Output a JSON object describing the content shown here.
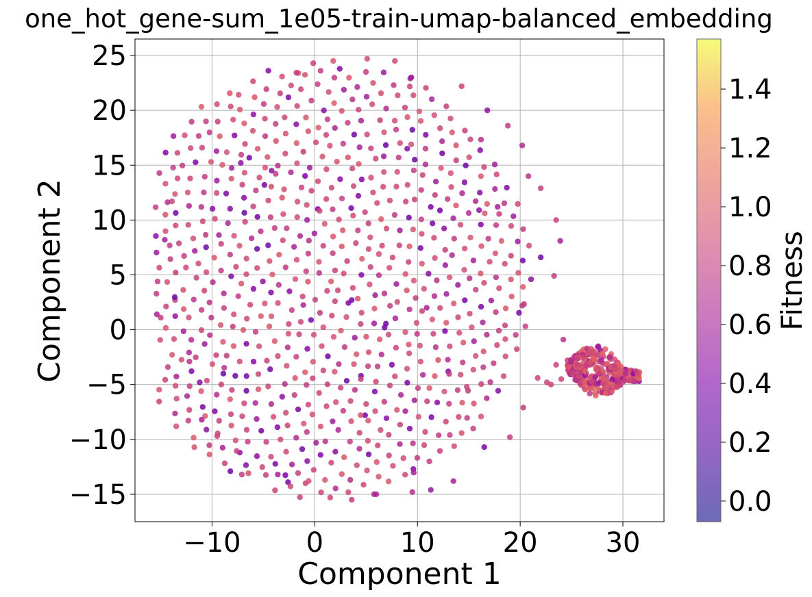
{
  "chart_data": {
    "type": "scatter",
    "title": "one_hot_gene-sum_1e05-train-umap-balanced_embedding",
    "xlabel": "Component 1",
    "ylabel": "Component 2",
    "xlim": [
      -17.5,
      34
    ],
    "ylim": [
      -17.5,
      26.5
    ],
    "xticks": [
      -10,
      0,
      10,
      20,
      30
    ],
    "xtick_labels": [
      "−10",
      "0",
      "10",
      "20",
      "30"
    ],
    "yticks": [
      -15,
      -10,
      -5,
      0,
      5,
      10,
      15,
      20,
      25
    ],
    "ytick_labels": [
      "−15",
      "−10",
      "−5",
      "0",
      "5",
      "10",
      "15",
      "20",
      "25"
    ],
    "grid": true,
    "colorbar": {
      "label": "Fitness",
      "range": [
        -0.07,
        1.57
      ],
      "ticks": [
        0.0,
        0.2,
        0.4,
        0.6,
        0.8,
        1.0,
        1.2,
        1.4
      ],
      "tick_labels": [
        "0.0",
        "0.2",
        "0.4",
        "0.6",
        "0.8",
        "1.0",
        "1.2",
        "1.4"
      ],
      "colormap": "plasma",
      "alpha": 0.6
    },
    "points": [
      {
        "x": 5.1,
        "y": 24.7,
        "c": 0.9
      },
      {
        "x": 1.8,
        "y": 24.5,
        "c": 0.95
      },
      {
        "x": 7.8,
        "y": 24.5,
        "c": 0.9
      },
      {
        "x": -1.6,
        "y": 23.4,
        "c": 0.95
      },
      {
        "x": 9.4,
        "y": 23.0,
        "c": 0.5
      },
      {
        "x": 14.3,
        "y": 22.2,
        "c": 0.85
      },
      {
        "x": 16.8,
        "y": 20.0,
        "c": 0.5
      },
      {
        "x": 18.8,
        "y": 18.6,
        "c": 0.8
      },
      {
        "x": 20.2,
        "y": 16.8,
        "c": 0.7
      },
      {
        "x": 20.8,
        "y": 14.0,
        "c": 0.75
      },
      {
        "x": 22.0,
        "y": 12.9,
        "c": 0.8
      },
      {
        "x": 23.5,
        "y": 10.0,
        "c": 0.85
      },
      {
        "x": 23.9,
        "y": 8.1,
        "c": 0.6
      },
      {
        "x": 23.3,
        "y": 4.9,
        "c": 0.8
      },
      {
        "x": 22.0,
        "y": 6.6,
        "c": 0.3
      },
      {
        "x": 20.2,
        "y": 2.2,
        "c": 0.75
      },
      {
        "x": 24.2,
        "y": -0.9,
        "c": 0.75
      },
      {
        "x": -15.3,
        "y": 4.4,
        "c": 0.8
      },
      {
        "x": -15.0,
        "y": 1.1,
        "c": 0.8
      },
      {
        "x": -14.6,
        "y": 8.2,
        "c": 0.6
      },
      {
        "x": -13.9,
        "y": 11.7,
        "c": 0.85
      },
      {
        "x": -13.6,
        "y": 2.7,
        "c": 0.8
      },
      {
        "x": -12.2,
        "y": -2.9,
        "c": 0.75
      },
      {
        "x": -11.2,
        "y": -4.8,
        "c": 0.45
      },
      {
        "x": -11.0,
        "y": -8.2,
        "c": 0.6
      },
      {
        "x": -9.5,
        "y": -9.7,
        "c": 0.85
      },
      {
        "x": -7.3,
        "y": -11.2,
        "c": 0.5
      },
      {
        "x": -7.1,
        "y": -13.2,
        "c": 0.8
      },
      {
        "x": -3.6,
        "y": -13.2,
        "c": 0.6
      },
      {
        "x": -2.6,
        "y": -13.9,
        "c": 0.4
      },
      {
        "x": -0.9,
        "y": -14.0,
        "c": 0.85
      },
      {
        "x": 1.5,
        "y": -15.3,
        "c": 0.85
      },
      {
        "x": 3.6,
        "y": -15.5,
        "c": 0.8
      },
      {
        "x": 6.0,
        "y": -15.0,
        "c": 0.7
      },
      {
        "x": 9.5,
        "y": -14.8,
        "c": 0.7
      },
      {
        "x": 11.3,
        "y": -14.6,
        "c": 0.55
      },
      {
        "x": 13.5,
        "y": -13.8,
        "c": 0.6
      },
      {
        "x": 16.5,
        "y": -10.7,
        "c": 0.4
      },
      {
        "x": 19.0,
        "y": -9.8,
        "c": 0.8
      },
      {
        "x": 20.3,
        "y": -7.1,
        "c": 0.8
      },
      {
        "x": -8.9,
        "y": -4.0,
        "c": 0.3
      },
      {
        "x": 4.5,
        "y": -4.2,
        "c": 0.4
      },
      {
        "x": 4.9,
        "y": -7.8,
        "c": 0.35
      },
      {
        "x": 14.8,
        "y": -5.2,
        "c": 0.85
      },
      {
        "x": 13.0,
        "y": -3.8,
        "c": 0.45
      },
      {
        "x": 9.6,
        "y": -12.7,
        "c": 0.45
      },
      {
        "x": -7.2,
        "y": 15.2,
        "c": 0.5
      },
      {
        "x": -4.2,
        "y": 14.5,
        "c": 0.5
      },
      {
        "x": 9.0,
        "y": 16.5,
        "c": 0.45
      },
      {
        "x": 9.3,
        "y": 22.9,
        "c": 0.6
      },
      {
        "x": 16.0,
        "y": 10.9,
        "c": 0.5
      },
      {
        "x": 17.8,
        "y": 11.2,
        "c": 0.6
      },
      {
        "x": 0.3,
        "y": 11.0,
        "c": 0.4
      },
      {
        "x": -4.9,
        "y": 13.2,
        "c": 0.35
      },
      {
        "x": 6.8,
        "y": 0.2,
        "c": 0.35
      },
      {
        "x": 10.9,
        "y": 2.0,
        "c": 0.6
      },
      {
        "x": 3.6,
        "y": 2.7,
        "c": 0.35
      }
    ],
    "cluster": {
      "x_range": [
        24.6,
        31.6
      ],
      "y_range": [
        -5.6,
        -0.9
      ],
      "c_range": [
        0.4,
        1.05
      ]
    }
  }
}
